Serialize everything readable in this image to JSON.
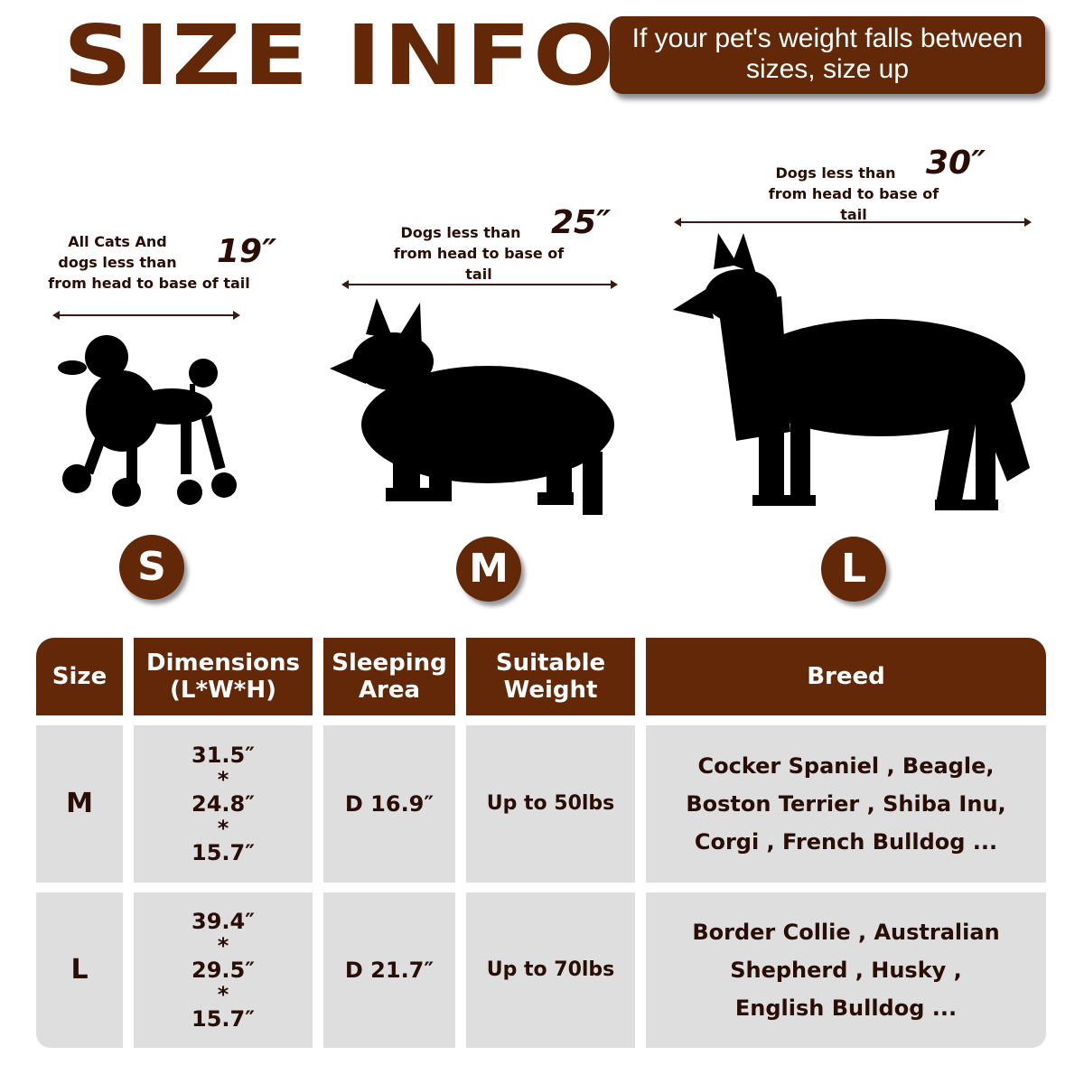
{
  "header": {
    "title": "SIZE INFO",
    "tip": "If your pet's weight falls between sizes, size up"
  },
  "sizes": [
    {
      "label": "S",
      "desc": [
        "All Cats And",
        "dogs less than",
        "from head to base of tail"
      ],
      "length": "19″",
      "silhouette": "poodle-silhouette"
    },
    {
      "label": "M",
      "desc": [
        "Dogs less than",
        "from head to base of tail"
      ],
      "length": "25″",
      "silhouette": "corgi-silhouette"
    },
    {
      "label": "L",
      "desc": [
        "Dogs less than",
        "from head to base of tail"
      ],
      "length": "30″",
      "silhouette": "collie-silhouette"
    }
  ],
  "table": {
    "headers": [
      "Size",
      "Dimensions (L*W*H)",
      "Sleeping Area",
      "Suitable Weight",
      "Breed"
    ],
    "rows": [
      {
        "size": "M",
        "dims": [
          "31.5″",
          "*",
          "24.8″",
          "*",
          "15.7″"
        ],
        "area": "D 16.9″",
        "weight": "Up to 50lbs",
        "breed": "Cocker Spaniel , Beagle, Boston Terrier , Shiba Inu, Corgi , French Bulldog ..."
      },
      {
        "size": "L",
        "dims": [
          "39.4″",
          "*",
          "29.5″",
          "*",
          "15.7″"
        ],
        "area": "D 21.7″",
        "weight": "Up to 70lbs",
        "breed": "Border Collie , Australian Shepherd , Husky , English Bulldog ..."
      }
    ]
  },
  "colors": {
    "brand": "#622807",
    "text": "#2a0d05",
    "cell": "#dedede"
  }
}
